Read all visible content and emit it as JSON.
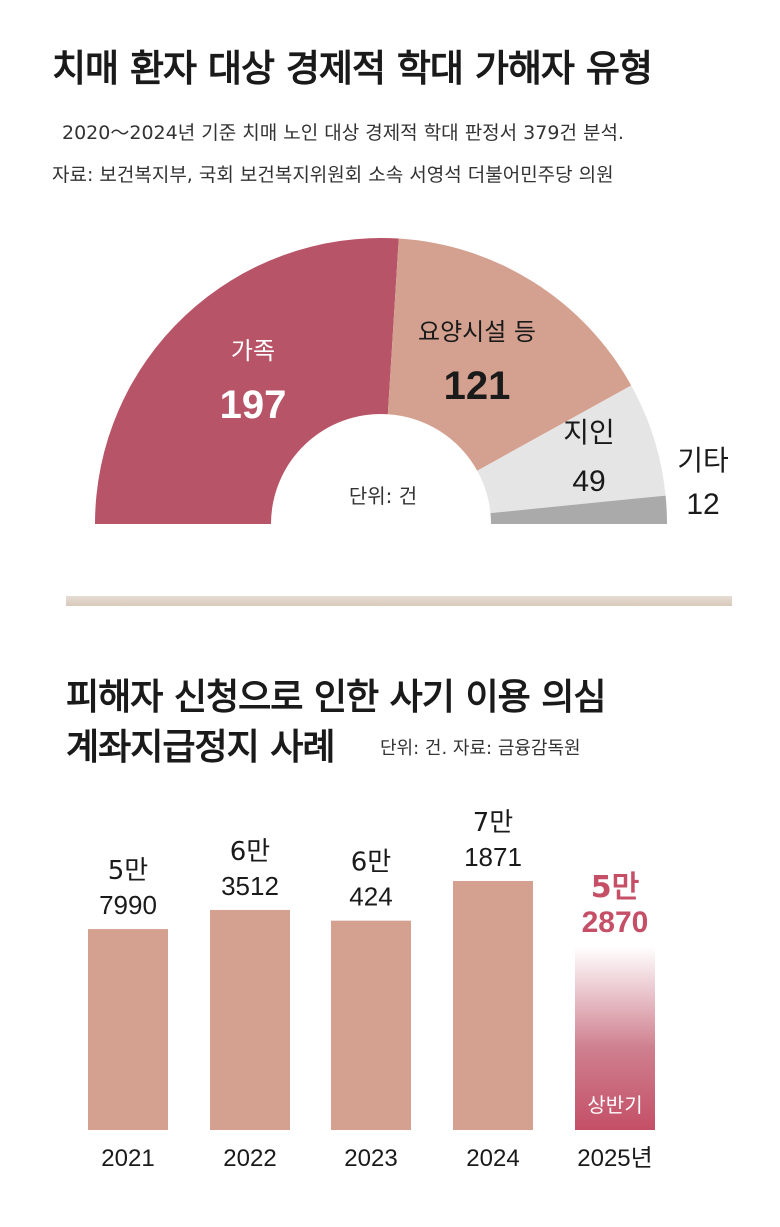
{
  "header": {
    "title": "치매 환자 대상 경제적 학대 가해자 유형",
    "subtitle": "2020～2024년 기준 치매 노인 대상 경제적 학대 판정서 379건 분석.",
    "source": "자료: 보건복지부, 국회 보건복지위원회 소속 서영석 더불어민주당 의원"
  },
  "section2": {
    "title_line1": "피해자 신청으로 인한 사기 이용 의심",
    "title_line2": "계좌지급정지 사례",
    "meta": "단위: 건. 자료: 금융감독원"
  },
  "colors": {
    "family": "#b85467",
    "facility": "#d4a08f",
    "acquaintance": "#e5e5e5",
    "other": "#aaaaaa",
    "bar": "#d4a08f",
    "highlight": "#c44f66"
  },
  "chart_data": [
    {
      "type": "pie",
      "variant": "half-donut",
      "unit_label": "단위: 건",
      "slices": [
        {
          "label": "가족",
          "value": 197
        },
        {
          "label": "요양시설 등",
          "value": 121
        },
        {
          "label": "지인",
          "value": 49
        },
        {
          "label": "기타",
          "value": 12
        }
      ]
    },
    {
      "type": "bar",
      "categories": [
        "2021",
        "2022",
        "2023",
        "2024",
        "2025년"
      ],
      "values": [
        57990,
        63512,
        60424,
        71871,
        52870
      ],
      "value_labels": [
        [
          "5만",
          "7990"
        ],
        [
          "6만",
          "3512"
        ],
        [
          "6만",
          "424"
        ],
        [
          "7만",
          "1871"
        ],
        [
          "5만",
          "2870"
        ]
      ],
      "annotations": [
        {
          "category": "2025년",
          "text": "상반기"
        }
      ]
    }
  ]
}
